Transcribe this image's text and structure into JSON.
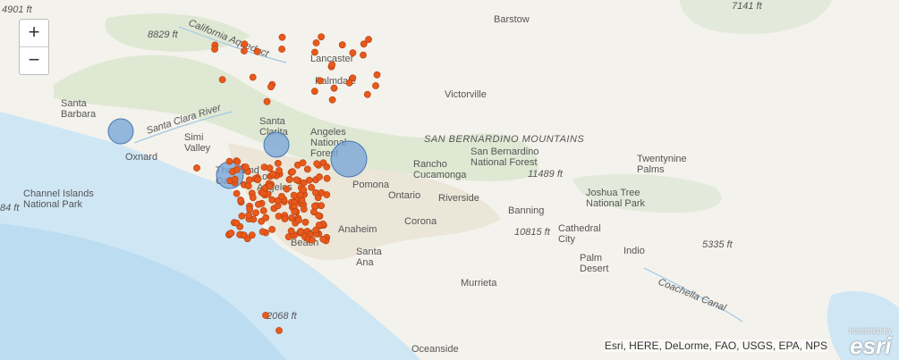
{
  "map": {
    "places": [
      [
        "4901 ft"
      ],
      [
        "8829 ft"
      ],
      [
        "7141 ft"
      ],
      [
        "Barstow"
      ],
      [
        "Lancaster"
      ],
      [
        "Palmdale"
      ],
      [
        "Victorville"
      ],
      [
        "Santa",
        "Barbara"
      ],
      [
        "Santa",
        "Clarita"
      ],
      [
        "Simi",
        "Valley"
      ],
      [
        "Oxnard"
      ],
      [
        "Thousand",
        "Oaks"
      ],
      [
        "Angeles",
        "National",
        "Forest"
      ],
      [
        "SAN BERNARDINO MOUNTAINS"
      ],
      [
        "Rancho",
        "Cucamonga"
      ],
      [
        "San Bernardino",
        "National Forest"
      ],
      [
        "Twentynine",
        "Palms"
      ],
      [
        "Los",
        "Angeles"
      ],
      [
        "Pomona"
      ],
      [
        "Ontario"
      ],
      [
        "Riverside"
      ],
      [
        "11489 ft"
      ],
      [
        "Channel Islands",
        "National Park"
      ],
      [
        "84 ft"
      ],
      [
        "Corona"
      ],
      [
        "Banning"
      ],
      [
        "Joshua Tree",
        "National Park"
      ],
      [
        "Anaheim"
      ],
      [
        "10815 ft"
      ],
      [
        "Cathedral",
        "City"
      ],
      [
        "Indio"
      ],
      [
        "5335 ft"
      ],
      [
        "Palm",
        "Desert"
      ],
      [
        "Santa",
        "Ana"
      ],
      [
        "Long",
        "Beach"
      ],
      [
        "Murrieta"
      ],
      [
        "2068 ft"
      ],
      [
        "Oceanside"
      ],
      [
        "Coachella Canal"
      ],
      [
        "Santa Clara River"
      ],
      [
        "California Aqueduct"
      ]
    ],
    "zoom_in": "+",
    "zoom_out": "−",
    "attribution": "Esri, HERE, DeLorme, FAO, USGS, EPA, NPS",
    "logo_caption": "POWERED BY",
    "logo": "esri"
  }
}
